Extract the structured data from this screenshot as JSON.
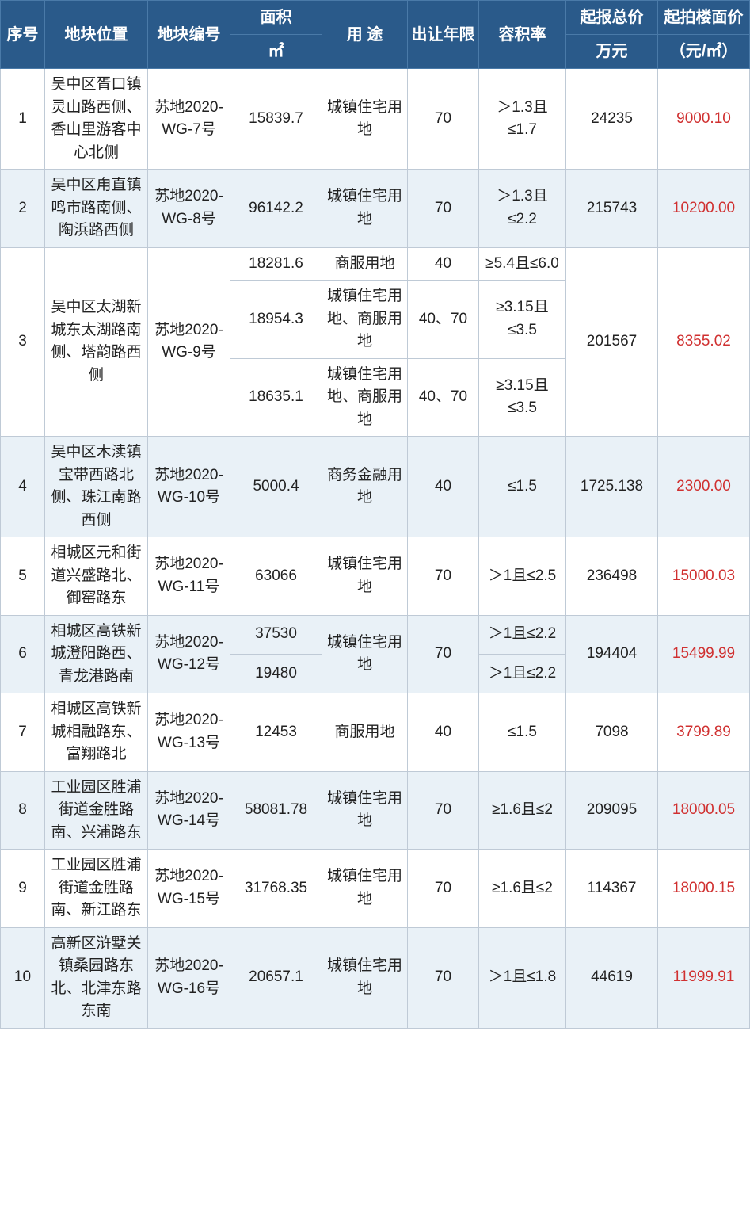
{
  "headers": {
    "idx": "序号",
    "location": "地块位置",
    "code": "地块编号",
    "area_group": "面积",
    "area_unit": "㎡",
    "use": "用 途",
    "years": "出让年限",
    "far": "容积率",
    "total_group": "起报总价",
    "total_unit": "万元",
    "unit_group": "起拍楼面价",
    "unit_unit": "（元/㎡）"
  },
  "colors": {
    "header_bg": "#2a5a8a",
    "header_text": "#ffffff",
    "border": "#bfcad6",
    "alt_row": "#e9f1f7",
    "plain_row": "#ffffff",
    "price": "#d03030"
  },
  "rows": [
    {
      "idx": "1",
      "alt": false,
      "location": "吴中区胥口镇灵山路西侧、香山里游客中心北侧",
      "code": "苏地2020-WG-7号",
      "subs": [
        {
          "area": "15839.7",
          "use": "城镇住宅用地",
          "years": "70",
          "far": "＞1.3且≤1.7"
        }
      ],
      "total": "24235",
      "unit": "9000.10"
    },
    {
      "idx": "2",
      "alt": true,
      "location": "吴中区甪直镇鸣市路南侧、陶浜路西侧",
      "code": "苏地2020-WG-8号",
      "subs": [
        {
          "area": "96142.2",
          "use": "城镇住宅用地",
          "years": "70",
          "far": "＞1.3且≤2.2"
        }
      ],
      "total": "215743",
      "unit": "10200.00"
    },
    {
      "idx": "3",
      "alt": false,
      "location": "吴中区太湖新城东太湖路南侧、塔韵路西侧",
      "code": "苏地2020-WG-9号",
      "subs": [
        {
          "area": "18281.6",
          "use": "商服用地",
          "years": "40",
          "far": "≥5.4且≤6.0"
        },
        {
          "area": "18954.3",
          "use": "城镇住宅用地、商服用地",
          "years": "40、70",
          "far": "≥3.15且≤3.5"
        },
        {
          "area": "18635.1",
          "use": "城镇住宅用地、商服用地",
          "years": "40、70",
          "far": "≥3.15且≤3.5"
        }
      ],
      "total": "201567",
      "unit": "8355.02"
    },
    {
      "idx": "4",
      "alt": true,
      "location": "吴中区木渎镇宝带西路北侧、珠江南路西侧",
      "code": "苏地2020-WG-10号",
      "subs": [
        {
          "area": "5000.4",
          "use": "商务金融用地",
          "years": "40",
          "far": "≤1.5"
        }
      ],
      "total": "1725.138",
      "unit": "2300.00"
    },
    {
      "idx": "5",
      "alt": false,
      "location": "相城区元和街道兴盛路北、御窑路东",
      "code": "苏地2020-WG-11号",
      "subs": [
        {
          "area": "63066",
          "use": "城镇住宅用地",
          "years": "70",
          "far": "＞1且≤2.5"
        }
      ],
      "total": "236498",
      "unit": "15000.03"
    },
    {
      "idx": "6",
      "alt": true,
      "location": "相城区高铁新城澄阳路西、青龙港路南",
      "code": "苏地2020-WG-12号",
      "merge_use_years": true,
      "use_merged": "城镇住宅用地",
      "years_merged": "70",
      "subs": [
        {
          "area": "37530",
          "far": "＞1且≤2.2"
        },
        {
          "area": "19480",
          "far": "＞1且≤2.2"
        }
      ],
      "total": "194404",
      "unit": "15499.99"
    },
    {
      "idx": "7",
      "alt": false,
      "location": "相城区高铁新城相融路东、富翔路北",
      "code": "苏地2020-WG-13号",
      "subs": [
        {
          "area": "12453",
          "use": "商服用地",
          "years": "40",
          "far": "≤1.5"
        }
      ],
      "total": "7098",
      "unit": "3799.89"
    },
    {
      "idx": "8",
      "alt": true,
      "location": "工业园区胜浦街道金胜路南、兴浦路东",
      "code": "苏地2020-WG-14号",
      "subs": [
        {
          "area": "58081.78",
          "use": "城镇住宅用地",
          "years": "70",
          "far": "≥1.6且≤2"
        }
      ],
      "total": "209095",
      "unit": "18000.05"
    },
    {
      "idx": "9",
      "alt": false,
      "location": "工业园区胜浦街道金胜路南、新江路东",
      "code": "苏地2020-WG-15号",
      "subs": [
        {
          "area": "31768.35",
          "use": "城镇住宅用地",
          "years": "70",
          "far": "≥1.6且≤2"
        }
      ],
      "total": "114367",
      "unit": "18000.15"
    },
    {
      "idx": "10",
      "alt": true,
      "location": "高新区浒墅关镇桑园路东北、北津东路东南",
      "code": "苏地2020-WG-16号",
      "subs": [
        {
          "area": "20657.1",
          "use": "城镇住宅用地",
          "years": "70",
          "far": "＞1且≤1.8"
        }
      ],
      "total": "44619",
      "unit": "11999.91"
    }
  ]
}
